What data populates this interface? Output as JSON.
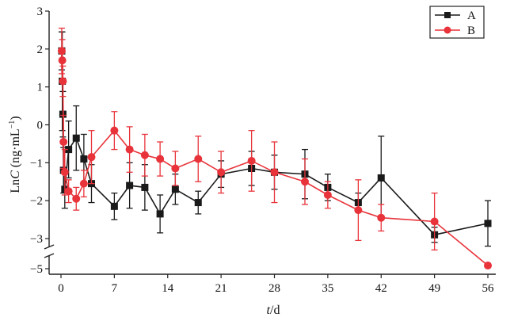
{
  "chart_data": {
    "type": "line",
    "xlabel_italic": "t",
    "xlabel_rest": "/d",
    "ylabel_prefix": "Ln",
    "ylabel_italic": "C",
    "ylabel_unit": "(ng·mL",
    "ylabel_sup": "−1",
    "ylabel_close": ")",
    "xlim": [
      -1,
      56
    ],
    "ylim": [
      -5.3,
      3
    ],
    "axis_break": "between -3 and -5",
    "x_ticks": [
      0,
      7,
      14,
      21,
      28,
      35,
      42,
      49,
      56
    ],
    "x_tick_labels": [
      "0",
      "7",
      "14",
      "21",
      "28",
      "35",
      "42",
      "49",
      "56"
    ],
    "y_ticks": [
      3,
      2,
      1,
      0,
      -1,
      -2,
      -3,
      -5
    ],
    "y_tick_labels": [
      "3",
      "2",
      "1",
      "0",
      "−1",
      "−2",
      "−3",
      "−5"
    ],
    "grid": false,
    "legend_position": "top-right",
    "series": [
      {
        "name": "A",
        "color": "#1a1a1a",
        "marker": "square",
        "points": [
          {
            "x": 0.1,
            "y": 1.95,
            "err": 0.5
          },
          {
            "x": 0.17,
            "y": 1.15,
            "err": 1.3
          },
          {
            "x": 0.25,
            "y": 0.28,
            "err": 0.6
          },
          {
            "x": 0.33,
            "y": -1.2,
            "err": 0.6
          },
          {
            "x": 0.5,
            "y": -1.7,
            "err": 0.5
          },
          {
            "x": 1,
            "y": -0.65,
            "err": 0.75
          },
          {
            "x": 2,
            "y": -0.35,
            "err": 0.85
          },
          {
            "x": 3,
            "y": -0.9,
            "err": 0.65
          },
          {
            "x": 4,
            "y": -1.55,
            "err": 0.5
          },
          {
            "x": 7,
            "y": -2.15,
            "err": 0.35
          },
          {
            "x": 9,
            "y": -1.6,
            "err": 0.6
          },
          {
            "x": 11,
            "y": -1.65,
            "err": 0.6
          },
          {
            "x": 13,
            "y": -2.35,
            "err": 0.5
          },
          {
            "x": 15,
            "y": -1.7,
            "err": 0.4
          },
          {
            "x": 18,
            "y": -2.05,
            "err": 0.3
          },
          {
            "x": 21,
            "y": -1.3,
            "err": 0.35
          },
          {
            "x": 25,
            "y": -1.15,
            "err": 0.45
          },
          {
            "x": 28,
            "y": -1.25,
            "err": 0.45
          },
          {
            "x": 32,
            "y": -1.3,
            "err": 0.65
          },
          {
            "x": 35,
            "y": -1.65,
            "err": 0.35
          },
          {
            "x": 39,
            "y": -2.05,
            "err": 0.25
          },
          {
            "x": 42,
            "y": -1.4,
            "err": 1.1
          },
          {
            "x": 49,
            "y": -2.9,
            "err": 0.2
          },
          {
            "x": 56,
            "y": -2.6,
            "err": 0.6
          }
        ]
      },
      {
        "name": "B",
        "color": "#e8333a",
        "marker": "circle",
        "points": [
          {
            "x": 0.1,
            "y": 1.95,
            "err": 0.6
          },
          {
            "x": 0.17,
            "y": 1.7,
            "err": 0.55
          },
          {
            "x": 0.25,
            "y": 1.15,
            "err": 0.4
          },
          {
            "x": 0.33,
            "y": -0.45,
            "err": 0.7
          },
          {
            "x": 0.5,
            "y": -1.25,
            "err": 0.6
          },
          {
            "x": 1,
            "y": -1.75,
            "err": 0.3
          },
          {
            "x": 2,
            "y": -1.95,
            "err": 0.3
          },
          {
            "x": 3,
            "y": -1.55,
            "err": 0.35
          },
          {
            "x": 4,
            "y": -0.85,
            "err": 0.7
          },
          {
            "x": 7,
            "y": -0.15,
            "err": 0.5
          },
          {
            "x": 9,
            "y": -0.65,
            "err": 0.6
          },
          {
            "x": 11,
            "y": -0.8,
            "err": 0.55
          },
          {
            "x": 13,
            "y": -0.9,
            "err": 0.45
          },
          {
            "x": 15,
            "y": -1.15,
            "err": 0.45
          },
          {
            "x": 18,
            "y": -0.9,
            "err": 0.6
          },
          {
            "x": 21,
            "y": -1.25,
            "err": 0.55
          },
          {
            "x": 25,
            "y": -0.95,
            "err": 0.8
          },
          {
            "x": 28,
            "y": -1.25,
            "err": 0.8
          },
          {
            "x": 32,
            "y": -1.5,
            "err": 0.6
          },
          {
            "x": 35,
            "y": -1.85,
            "err": 0.35
          },
          {
            "x": 39,
            "y": -2.25,
            "err": 0.8
          },
          {
            "x": 42,
            "y": -2.45,
            "err": 0.35
          },
          {
            "x": 49,
            "y": -2.55,
            "err": 0.75
          },
          {
            "x": 56,
            "y": -4.5,
            "err": 0.35
          }
        ]
      }
    ]
  }
}
